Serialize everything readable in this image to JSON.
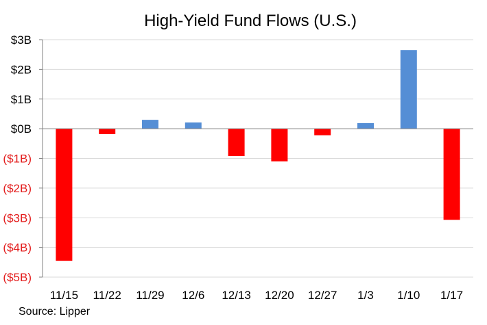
{
  "chart_data": {
    "type": "bar",
    "title": "High-Yield  Fund Flows (U.S.)",
    "source": "Source: Lipper",
    "categories": [
      "11/15",
      "11/22",
      "11/29",
      "12/6",
      "12/13",
      "12/20",
      "12/27",
      "1/3",
      "1/10",
      "1/17"
    ],
    "values": [
      -4.45,
      -0.18,
      0.3,
      0.21,
      -0.92,
      -1.1,
      -0.22,
      0.19,
      2.65,
      -3.07
    ],
    "ylim": [
      -5,
      3
    ],
    "yticks": [
      3,
      2,
      1,
      0,
      -1,
      -2,
      -3,
      -4,
      -5
    ],
    "ytick_labels": [
      "$3B",
      "$2B",
      "$1B",
      "$0B",
      "($1B)",
      "($2B)",
      "($3B)",
      "($4B)",
      "($5B)"
    ],
    "xlabel": "",
    "ylabel": "",
    "grid": true,
    "colors": {
      "positive": "#558ED5",
      "negative": "#FF0000",
      "negative_label": "#E31C1C",
      "positive_label": "#000000",
      "grid": "#D9D9D9",
      "axis": "#808080"
    }
  }
}
